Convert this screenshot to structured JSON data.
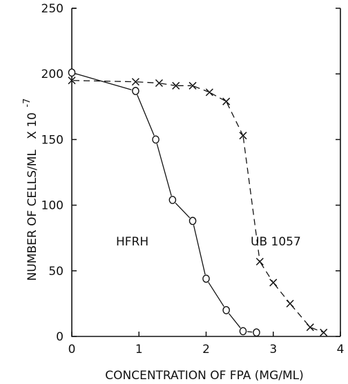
{
  "chart_data": {
    "type": "line",
    "xlabel": "CONCENTRATION OF FPA (MG/ML)",
    "ylabel": "NUMBER OF CELLS/ML",
    "ylabel_multiplier": "X 10",
    "ylabel_exponent": "-7",
    "xlim": [
      0,
      4
    ],
    "ylim": [
      0,
      250
    ],
    "x_ticks": [
      0,
      1,
      2,
      3,
      4
    ],
    "y_ticks": [
      0,
      50,
      100,
      150,
      200,
      250
    ],
    "grid": false,
    "series": [
      {
        "name": "HFRH",
        "marker": "o",
        "line_style": "solid",
        "x": [
          0,
          0.95,
          1.25,
          1.5,
          1.8,
          2.0,
          2.3,
          2.55,
          2.75
        ],
        "y": [
          201,
          187,
          150,
          104,
          88,
          44,
          20,
          4,
          3
        ]
      },
      {
        "name": "UB 1057",
        "marker": "x",
        "line_style": "dashed",
        "x": [
          0,
          0.95,
          1.3,
          1.55,
          1.8,
          2.05,
          2.3,
          2.55,
          2.8,
          3.0,
          3.25,
          3.55,
          3.75
        ],
        "y": [
          195,
          194,
          193,
          191,
          191,
          186,
          179,
          153,
          57,
          41,
          25,
          7,
          3
        ]
      }
    ]
  }
}
